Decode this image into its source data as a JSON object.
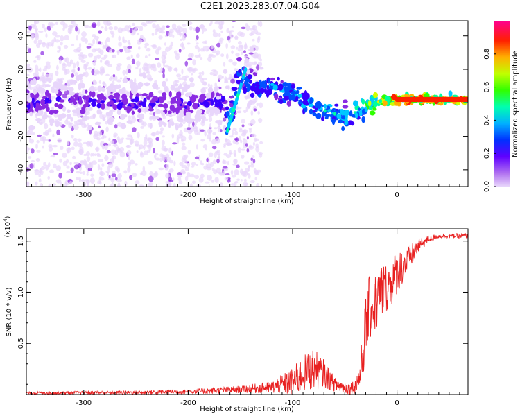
{
  "title": "C2E1.2023.283.07.04.G04",
  "chart_data": [
    {
      "type": "heatmap",
      "xlabel": "Height of straight line (km)",
      "ylabel": "Frequency (Hz)",
      "xlim": [
        -355,
        68
      ],
      "ylim": [
        -50,
        49
      ],
      "xticks": [
        -300,
        -200,
        -100,
        0
      ],
      "yticks": [
        -40,
        -20,
        0,
        20,
        40
      ],
      "colorbar": {
        "label": "Normalized spectral amplitude",
        "range": [
          0.0,
          1.0
        ],
        "ticks": [
          0.0,
          0.2,
          0.4,
          0.6,
          0.8
        ],
        "colormap": [
          "#e8d6fb",
          "#8a2be2",
          "#3a00ff",
          "#0050ff",
          "#00c8ff",
          "#00ffa0",
          "#30ff00",
          "#d0ff00",
          "#ffb000",
          "#ff2000",
          "#ff0080"
        ]
      },
      "ridge": {
        "x": [
          -350,
          -300,
          -250,
          -200,
          -170,
          -160,
          -150,
          -140,
          -120,
          -100,
          -80,
          -60,
          -45,
          -35,
          -25,
          -15,
          0,
          20,
          40,
          68
        ],
        "y": [
          0,
          1,
          0,
          0,
          0,
          -10,
          18,
          10,
          9,
          5,
          -1,
          -7,
          -8,
          -4,
          0,
          0,
          2,
          2,
          2,
          2
        ],
        "amplitude": [
          0.25,
          0.25,
          0.25,
          0.25,
          0.25,
          0.45,
          0.45,
          0.35,
          0.45,
          0.45,
          0.5,
          0.5,
          0.45,
          0.55,
          0.7,
          0.85,
          0.9,
          0.9,
          0.88,
          0.85
        ]
      }
    },
    {
      "type": "line",
      "xlabel": "Height of straight line (km)",
      "ylabel": "SNR (10 * v/v)",
      "yscale_label": "(x10",
      "yscale_exp": "4",
      "xlim": [
        -355,
        68
      ],
      "ylim": [
        0,
        1.62
      ],
      "xticks": [
        -300,
        -200,
        -100,
        0
      ],
      "yticks": [
        0.5,
        1.0,
        1.5
      ],
      "ytick_labels": [
        "0.5",
        "1.0",
        "1.5"
      ],
      "color": "#e82020",
      "envelope": {
        "x": [
          -355,
          -250,
          -200,
          -180,
          -150,
          -120,
          -110,
          -100,
          -90,
          -80,
          -70,
          -60,
          -50,
          -45,
          -40,
          -35,
          -32,
          -28,
          -25,
          -20,
          -15,
          -10,
          -5,
          0,
          10,
          20,
          30,
          40,
          50,
          60,
          68
        ],
        "mean": [
          0.015,
          0.02,
          0.03,
          0.035,
          0.05,
          0.07,
          0.1,
          0.12,
          0.2,
          0.25,
          0.2,
          0.1,
          0.07,
          0.06,
          0.08,
          0.2,
          0.5,
          0.8,
          0.85,
          0.9,
          1.0,
          1.05,
          1.1,
          1.2,
          1.3,
          1.45,
          1.52,
          1.55,
          1.55,
          1.55,
          1.55
        ],
        "jitter": [
          0.01,
          0.015,
          0.02,
          0.025,
          0.03,
          0.05,
          0.08,
          0.12,
          0.15,
          0.17,
          0.12,
          0.06,
          0.05,
          0.05,
          0.06,
          0.15,
          0.25,
          0.3,
          0.25,
          0.25,
          0.25,
          0.2,
          0.2,
          0.18,
          0.12,
          0.06,
          0.03,
          0.02,
          0.02,
          0.02,
          0.02
        ]
      }
    }
  ]
}
